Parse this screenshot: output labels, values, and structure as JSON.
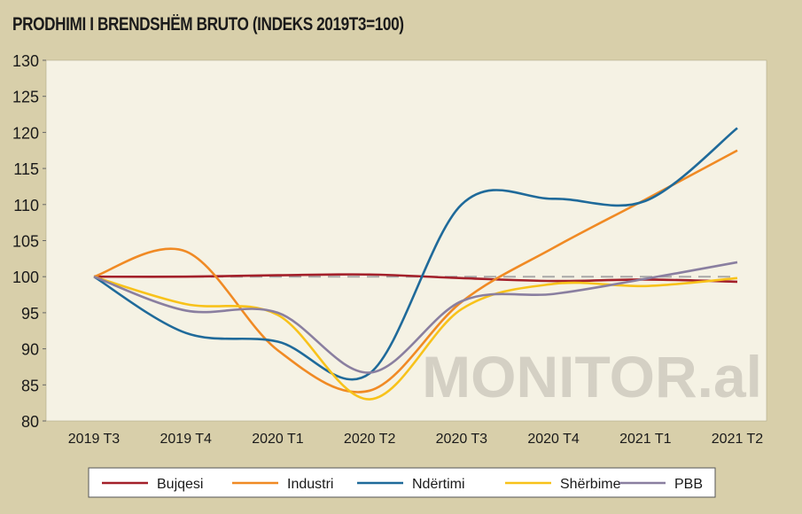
{
  "chart_data": {
    "type": "line",
    "title": "PRODHIMI I BRENDSHËM BRUTO (INDEKS 2019T3=100)",
    "watermark": "MONITOR.al",
    "xlabel": "",
    "ylabel": "",
    "ylim": [
      80,
      130
    ],
    "yticks": [
      "80",
      "85",
      "90",
      "95",
      "100",
      "105",
      "110",
      "115",
      "120",
      "125",
      "130"
    ],
    "categories": [
      "2019 T3",
      "2019 T4",
      "2020 T1",
      "2020 T2",
      "2020 T3",
      "2020 T4",
      "2021 T1",
      "2021 T2"
    ],
    "reference_line": 100,
    "legend_position": "bottom",
    "series": [
      {
        "name": "Bujqesi",
        "color": "#a3202a",
        "values": [
          100,
          100,
          100.2,
          100.3,
          99.8,
          99.4,
          99.6,
          99.3
        ]
      },
      {
        "name": "Industri",
        "color": "#f08a24",
        "values": [
          100,
          103.5,
          89.8,
          84.2,
          96.5,
          104,
          110.7,
          117.5
        ]
      },
      {
        "name": "Ndërtimi",
        "color": "#1f6a9a",
        "values": [
          100,
          92.2,
          91,
          86.6,
          110,
          110.8,
          110.5,
          120.6
        ]
      },
      {
        "name": "Shërbime",
        "color": "#f8c21a",
        "values": [
          100,
          96.2,
          94.7,
          83,
          95.5,
          99,
          98.7,
          99.8
        ]
      },
      {
        "name": "PBB",
        "color": "#8a7fa0",
        "values": [
          100,
          95.3,
          95,
          86.7,
          96.6,
          97.6,
          99.7,
          102
        ]
      }
    ]
  }
}
